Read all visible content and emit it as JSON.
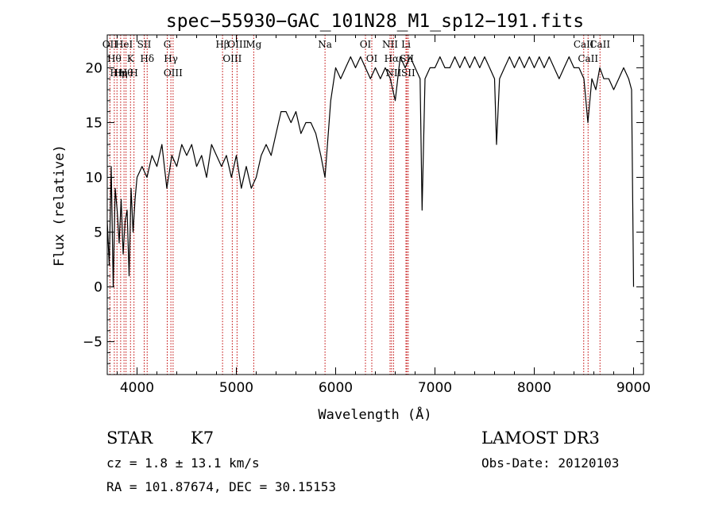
{
  "chart_data": {
    "type": "line",
    "title": "spec−55930−GAC_101N28_M1_sp12−191.fits",
    "xlabel": "Wavelength (Å)",
    "ylabel": "Flux (relative)",
    "xlim": [
      3700,
      9100
    ],
    "ylim": [
      -8,
      23
    ],
    "xticks": [
      4000,
      5000,
      6000,
      7000,
      8000,
      9000
    ],
    "xtick_labels": [
      "4000",
      "5000",
      "6000",
      "7000",
      "8000",
      "9000"
    ],
    "yticks": [
      -5,
      0,
      5,
      10,
      15,
      20
    ],
    "ytick_labels": [
      "−5",
      "0",
      "5",
      "10",
      "15",
      "20"
    ],
    "grid": false,
    "series": [
      {
        "name": "flux",
        "x": [
          3700,
          3720,
          3740,
          3760,
          3780,
          3800,
          3820,
          3840,
          3860,
          3880,
          3900,
          3920,
          3940,
          3960,
          3980,
          4000,
          4050,
          4100,
          4150,
          4200,
          4250,
          4300,
          4350,
          4400,
          4450,
          4500,
          4550,
          4600,
          4650,
          4700,
          4750,
          4800,
          4850,
          4900,
          4950,
          5000,
          5050,
          5100,
          5150,
          5200,
          5250,
          5300,
          5350,
          5400,
          5450,
          5500,
          5550,
          5600,
          5650,
          5700,
          5750,
          5800,
          5850,
          5893,
          5950,
          6000,
          6050,
          6100,
          6150,
          6200,
          6250,
          6300,
          6350,
          6400,
          6450,
          6500,
          6550,
          6600,
          6650,
          6700,
          6750,
          6800,
          6850,
          6870,
          6900,
          6950,
          7000,
          7050,
          7100,
          7150,
          7200,
          7250,
          7300,
          7350,
          7400,
          7450,
          7500,
          7550,
          7600,
          7620,
          7650,
          7700,
          7750,
          7800,
          7850,
          7900,
          7950,
          8000,
          8050,
          8100,
          8150,
          8200,
          8250,
          8300,
          8350,
          8400,
          8450,
          8500,
          8540,
          8580,
          8620,
          8660,
          8700,
          8750,
          8800,
          8850,
          8900,
          8950,
          8980,
          9000
        ],
        "values": [
          6,
          2,
          11,
          0,
          9,
          7,
          4,
          8,
          3,
          6,
          7,
          1,
          9,
          5,
          8,
          10,
          11,
          10,
          12,
          11,
          13,
          9,
          12,
          11,
          13,
          12,
          13,
          11,
          12,
          10,
          13,
          12,
          11,
          12,
          10,
          12,
          9,
          11,
          9,
          10,
          12,
          13,
          12,
          14,
          16,
          16,
          15,
          16,
          14,
          15,
          15,
          14,
          12,
          10,
          17,
          20,
          19,
          20,
          21,
          20,
          21,
          20,
          19,
          20,
          19,
          20,
          19,
          17,
          21,
          20,
          21,
          20,
          19,
          7,
          19,
          20,
          20,
          21,
          20,
          20,
          21,
          20,
          21,
          20,
          21,
          20,
          21,
          20,
          19,
          13,
          19,
          20,
          21,
          20,
          21,
          20,
          21,
          20,
          21,
          20,
          21,
          20,
          19,
          20,
          21,
          20,
          20,
          19,
          15,
          19,
          18,
          20,
          19,
          19,
          18,
          19,
          20,
          19,
          18,
          0
        ]
      }
    ],
    "line_markers": [
      {
        "wavelength": 3727,
        "label": "OII"
      },
      {
        "wavelength": 3771,
        "label": "Hθ"
      },
      {
        "wavelength": 3798,
        "label": "Hη"
      },
      {
        "wavelength": 3835,
        "label": "Hη"
      },
      {
        "wavelength": 3869,
        "label": "HeI"
      },
      {
        "wavelength": 3889,
        "label": "Hθ"
      },
      {
        "wavelength": 3934,
        "label": "K"
      },
      {
        "wavelength": 3969,
        "label": "H"
      },
      {
        "wavelength": 4072,
        "label": "SII"
      },
      {
        "wavelength": 4102,
        "label": "Hδ"
      },
      {
        "wavelength": 4304,
        "label": "G"
      },
      {
        "wavelength": 4341,
        "label": "Hγ"
      },
      {
        "wavelength": 4363,
        "label": "OIII"
      },
      {
        "wavelength": 4861,
        "label": "Hβ"
      },
      {
        "wavelength": 4959,
        "label": "OIII"
      },
      {
        "wavelength": 5007,
        "label": "OIII"
      },
      {
        "wavelength": 5175,
        "label": "Mg"
      },
      {
        "wavelength": 5893,
        "label": "Na"
      },
      {
        "wavelength": 6300,
        "label": "OI"
      },
      {
        "wavelength": 6364,
        "label": "OI"
      },
      {
        "wavelength": 6548,
        "label": "NII"
      },
      {
        "wavelength": 6563,
        "label": "Hα"
      },
      {
        "wavelength": 6583,
        "label": "NII"
      },
      {
        "wavelength": 6708,
        "label": "Li"
      },
      {
        "wavelength": 6717,
        "label": "SII"
      },
      {
        "wavelength": 6731,
        "label": "SII"
      },
      {
        "wavelength": 8498,
        "label": "CaII"
      },
      {
        "wavelength": 8542,
        "label": "CaII"
      },
      {
        "wavelength": 8662,
        "label": "CaII"
      }
    ]
  },
  "info": {
    "object_class": "STAR",
    "subclass": "K7",
    "survey": "LAMOST DR3",
    "redshift": "cz = 1.8 ± 13.1 km/s",
    "obs_date": "Obs-Date: 20120103",
    "coords": "RA = 101.87674, DEC =  30.15153"
  },
  "colors": {
    "spectrum": "#000000",
    "marker": "#c00000",
    "axes": "#000000"
  }
}
